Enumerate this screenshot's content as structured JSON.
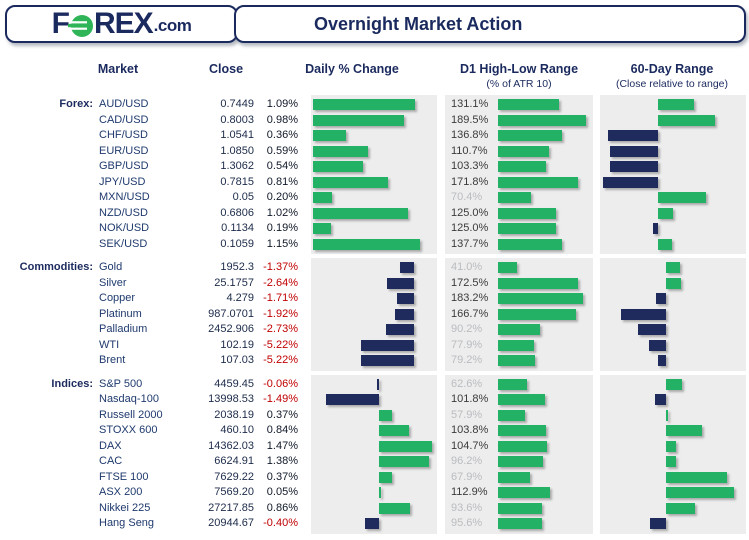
{
  "brand": {
    "part1": "F",
    "part2": "REX",
    "suffix": ".com"
  },
  "header": {
    "title": "Overnight Market Action"
  },
  "columns": {
    "market": "Market",
    "close": "Close",
    "daily": "Daily % Change",
    "d1": "D1 High-Low Range",
    "d1_sub": "(% of ATR 10)",
    "d60": "60-Day Range",
    "d60_sub": "(Close relative to range)"
  },
  "colors": {
    "navy": "#1b2a5e",
    "bar_green": "#23b265",
    "bar_navy": "#1e2b5c",
    "negative_red": "#c00000",
    "panel_gray": "#ededed",
    "dim_label": "#b9bcc0",
    "dark_label": "#3b3b3b"
  },
  "sections": [
    {
      "id": "forex",
      "label": "Forex:",
      "daily_baseline": 1.5,
      "daily_scale": 74,
      "d60_baseline": 40,
      "rows": [
        {
          "market": "AUD/USD",
          "close": "0.7449",
          "pct": "1.09%",
          "pct_val": 1.09,
          "d1": "131.1%",
          "d1_val": 131.1,
          "d60": 24.3
        },
        {
          "market": "CAD/USD",
          "close": "0.8003",
          "pct": "0.98%",
          "pct_val": 0.98,
          "d1": "189.5%",
          "d1_val": 189.5,
          "d60": 38.5
        },
        {
          "market": "CHF/USD",
          "close": "1.0541",
          "pct": "0.36%",
          "pct_val": 0.36,
          "d1": "136.8%",
          "d1_val": 136.8,
          "d60": -34.5
        },
        {
          "market": "EUR/USD",
          "close": "1.0850",
          "pct": "0.59%",
          "pct_val": 0.59,
          "d1": "110.7%",
          "d1_val": 110.7,
          "d60": -33
        },
        {
          "market": "GBP/USD",
          "close": "1.3062",
          "pct": "0.54%",
          "pct_val": 0.54,
          "d1": "103.3%",
          "d1_val": 103.3,
          "d60": -33
        },
        {
          "market": "JPY/USD",
          "close": "0.7815",
          "pct": "0.81%",
          "pct_val": 0.81,
          "d1": "171.8%",
          "d1_val": 171.8,
          "d60": -37.8
        },
        {
          "market": "MXN/USD",
          "close": "0.05",
          "pct": "0.20%",
          "pct_val": 0.2,
          "d1": "70.4%",
          "d1_val": 70.4,
          "d60": 32.4
        },
        {
          "market": "NZD/USD",
          "close": "0.6806",
          "pct": "1.02%",
          "pct_val": 1.02,
          "d1": "125.0%",
          "d1_val": 125.0,
          "d60": 10
        },
        {
          "market": "NOK/USD",
          "close": "0.1134",
          "pct": "0.19%",
          "pct_val": 0.19,
          "d1": "125.0%",
          "d1_val": 125.0,
          "d60": -4
        },
        {
          "market": "SEK/USD",
          "close": "0.1059",
          "pct": "1.15%",
          "pct_val": 1.15,
          "d1": "137.7%",
          "d1_val": 137.7,
          "d60": 9.5
        }
      ]
    },
    {
      "id": "commodities",
      "label": "Commodities:",
      "daily_baseline": 82,
      "daily_scale": 8.1,
      "d60_baseline": 45,
      "rows": [
        {
          "market": "Gold",
          "close": "1952.3",
          "pct": "-1.37%",
          "pct_val": -1.37,
          "d1": "41.0%",
          "d1_val": 41.0,
          "d60": 9.5
        },
        {
          "market": "Silver",
          "close": "25.1757",
          "pct": "-2.64%",
          "pct_val": -2.64,
          "d1": "172.5%",
          "d1_val": 172.5,
          "d60": 10.5
        },
        {
          "market": "Copper",
          "close": "4.279",
          "pct": "-1.71%",
          "pct_val": -1.71,
          "d1": "183.2%",
          "d1_val": 183.2,
          "d60": -6.8
        },
        {
          "market": "Platinum",
          "close": "987.0701",
          "pct": "-1.92%",
          "pct_val": -1.92,
          "d1": "166.7%",
          "d1_val": 166.7,
          "d60": -30.9
        },
        {
          "market": "Palladium",
          "close": "2452.906",
          "pct": "-2.73%",
          "pct_val": -2.73,
          "d1": "90.2%",
          "d1_val": 90.2,
          "d60": -18.9
        },
        {
          "market": "WTI",
          "close": "102.19",
          "pct": "-5.22%",
          "pct_val": -5.22,
          "d1": "77.9%",
          "d1_val": 77.9,
          "d60": -11.3
        },
        {
          "market": "Brent",
          "close": "107.03",
          "pct": "-5.22%",
          "pct_val": -5.22,
          "d1": "79.2%",
          "d1_val": 79.2,
          "d60": -5.2
        }
      ]
    },
    {
      "id": "indices",
      "label": "Indices:",
      "daily_baseline": 54,
      "daily_scale": 28.5,
      "d60_baseline": 45.5,
      "rows": [
        {
          "market": "S&P 500",
          "close": "4459.45",
          "pct": "-0.06%",
          "pct_val": -0.06,
          "d1": "62.6%",
          "d1_val": 62.6,
          "d60": 11
        },
        {
          "market": "Nasdaq-100",
          "close": "13998.53",
          "pct": "-1.49%",
          "pct_val": -1.49,
          "d1": "101.8%",
          "d1_val": 101.8,
          "d60": -7.5
        },
        {
          "market": "Russell 2000",
          "close": "2038.19",
          "pct": "0.37%",
          "pct_val": 0.37,
          "d1": "57.9%",
          "d1_val": 57.9,
          "d60": 1.4
        },
        {
          "market": "STOXX 600",
          "close": "460.10",
          "pct": "0.84%",
          "pct_val": 0.84,
          "d1": "103.8%",
          "d1_val": 103.8,
          "d60": 24.4
        },
        {
          "market": "DAX",
          "close": "14362.03",
          "pct": "1.47%",
          "pct_val": 1.47,
          "d1": "104.7%",
          "d1_val": 104.7,
          "d60": 6.4
        },
        {
          "market": "CAC",
          "close": "6624.91",
          "pct": "1.38%",
          "pct_val": 1.38,
          "d1": "96.2%",
          "d1_val": 96.2,
          "d60": 6.4
        },
        {
          "market": "FTSE 100",
          "close": "7629.22",
          "pct": "0.37%",
          "pct_val": 0.37,
          "d1": "67.9%",
          "d1_val": 67.9,
          "d60": 41.8
        },
        {
          "market": "ASX 200",
          "close": "7569.20",
          "pct": "0.05%",
          "pct_val": 0.05,
          "d1": "112.9%",
          "d1_val": 112.9,
          "d60": 46.1
        },
        {
          "market": "Nikkei 225",
          "close": "27217.85",
          "pct": "0.86%",
          "pct_val": 0.86,
          "d1": "93.6%",
          "d1_val": 93.6,
          "d60": 19.4
        },
        {
          "market": "Hang Seng",
          "close": "20944.67",
          "pct": "-0.40%",
          "pct_val": -0.4,
          "d1": "95.6%",
          "d1_val": 95.6,
          "d60": -11
        }
      ]
    }
  ],
  "chart_data": [
    {
      "type": "bar",
      "title": "Daily % Change",
      "orientation": "horizontal",
      "categories": [
        "AUD/USD",
        "CAD/USD",
        "CHF/USD",
        "EUR/USD",
        "GBP/USD",
        "JPY/USD",
        "MXN/USD",
        "NZD/USD",
        "NOK/USD",
        "SEK/USD",
        "Gold",
        "Silver",
        "Copper",
        "Platinum",
        "Palladium",
        "WTI",
        "Brent",
        "S&P 500",
        "Nasdaq-100",
        "Russell 2000",
        "STOXX 600",
        "DAX",
        "CAC",
        "FTSE 100",
        "ASX 200",
        "Nikkei 225",
        "Hang Seng"
      ],
      "values": [
        1.09,
        0.98,
        0.36,
        0.59,
        0.54,
        0.81,
        0.2,
        1.02,
        0.19,
        1.15,
        -1.37,
        -2.64,
        -1.71,
        -1.92,
        -2.73,
        -5.22,
        -5.22,
        -0.06,
        -1.49,
        0.37,
        0.84,
        1.47,
        1.38,
        0.37,
        0.05,
        0.86,
        -0.4
      ],
      "positive_color": "#23b265",
      "negative_color": "#1e2b5c"
    },
    {
      "type": "bar",
      "title": "D1 High-Low Range (% of ATR 10)",
      "orientation": "horizontal",
      "categories": [
        "AUD/USD",
        "CAD/USD",
        "CHF/USD",
        "EUR/USD",
        "GBP/USD",
        "JPY/USD",
        "MXN/USD",
        "NZD/USD",
        "NOK/USD",
        "SEK/USD",
        "Gold",
        "Silver",
        "Copper",
        "Platinum",
        "Palladium",
        "WTI",
        "Brent",
        "S&P 500",
        "Nasdaq-100",
        "Russell 2000",
        "STOXX 600",
        "DAX",
        "CAC",
        "FTSE 100",
        "ASX 200",
        "Nikkei 225",
        "Hang Seng"
      ],
      "values": [
        131.1,
        189.5,
        136.8,
        110.7,
        103.3,
        171.8,
        70.4,
        125.0,
        125.0,
        137.7,
        41.0,
        172.5,
        183.2,
        166.7,
        90.2,
        77.9,
        79.2,
        62.6,
        101.8,
        57.9,
        103.8,
        104.7,
        96.2,
        67.9,
        112.9,
        93.6,
        95.6
      ],
      "bar_color": "#23b265",
      "label_rule": "labels under 100% shown dimmed gray"
    },
    {
      "type": "bar",
      "title": "60-Day Range (Close relative to range)",
      "orientation": "horizontal",
      "categories": [
        "AUD/USD",
        "CAD/USD",
        "CHF/USD",
        "EUR/USD",
        "GBP/USD",
        "JPY/USD",
        "MXN/USD",
        "NZD/USD",
        "NOK/USD",
        "SEK/USD",
        "Gold",
        "Silver",
        "Copper",
        "Platinum",
        "Palladium",
        "WTI",
        "Brent",
        "S&P 500",
        "Nasdaq-100",
        "Russell 2000",
        "STOXX 600",
        "DAX",
        "CAC",
        "FTSE 100",
        "ASX 200",
        "Nikkei 225",
        "Hang Seng"
      ],
      "values_pct_of_panel": [
        24.3,
        38.5,
        -34.5,
        -33,
        -33,
        -37.8,
        32.4,
        10,
        -4,
        9.5,
        9.5,
        10.5,
        -6.8,
        -30.9,
        -18.9,
        -11.3,
        -5.2,
        11,
        -7.5,
        1.4,
        24.4,
        6.4,
        6.4,
        41.8,
        46.1,
        19.4,
        -11
      ],
      "positive_color": "#23b265",
      "negative_color": "#1e2b5c",
      "note": "green bars extend right (close in upper part of 60-day range), navy bars extend left (lower part)"
    }
  ]
}
